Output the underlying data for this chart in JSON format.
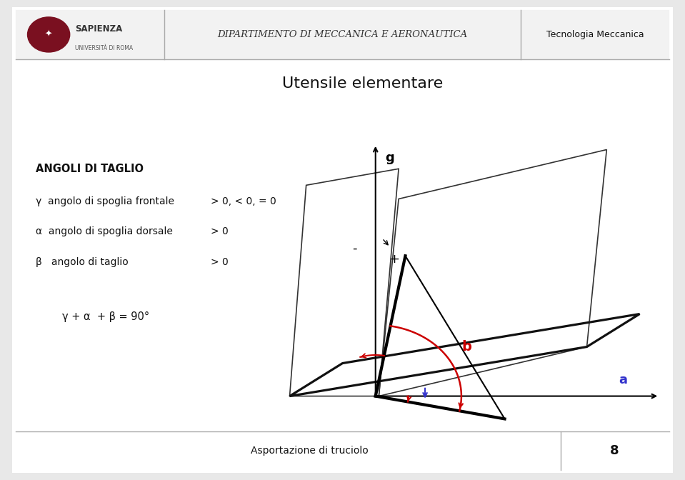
{
  "title": "Utensile elementare",
  "header_dept": "DIPARTIMENTO DI MECCANICA E AERONAUTICA",
  "header_right": "Tecnologia Meccanica",
  "footer_text": "Asportazione di truciolo",
  "footer_page": "8",
  "outer_bg": "#e8e8e8",
  "slide_bg": "#ffffff",
  "line_color": "#999999",
  "text_color": "#000000",
  "red_color": "#cc0000",
  "blue_color": "#3333cc",
  "text_lines": [
    [
      "ANGOLI DI TAGLIO",
      true,
      10.5
    ],
    [
      "γ  angolo di spoglia frontale",
      false,
      10
    ],
    [
      "α  angolo di spoglia dorsale",
      false,
      10
    ],
    [
      "β   angolo di taglio",
      false,
      10
    ]
  ],
  "text_values": [
    "",
    "> 0, < 0, = 0",
    "> 0",
    "> 0"
  ],
  "formula": "γ + α  + β = 90°",
  "gamma_deg": 10,
  "alpha_deg": 12,
  "diagram_ox": 5.5,
  "diagram_oy": 1.4
}
